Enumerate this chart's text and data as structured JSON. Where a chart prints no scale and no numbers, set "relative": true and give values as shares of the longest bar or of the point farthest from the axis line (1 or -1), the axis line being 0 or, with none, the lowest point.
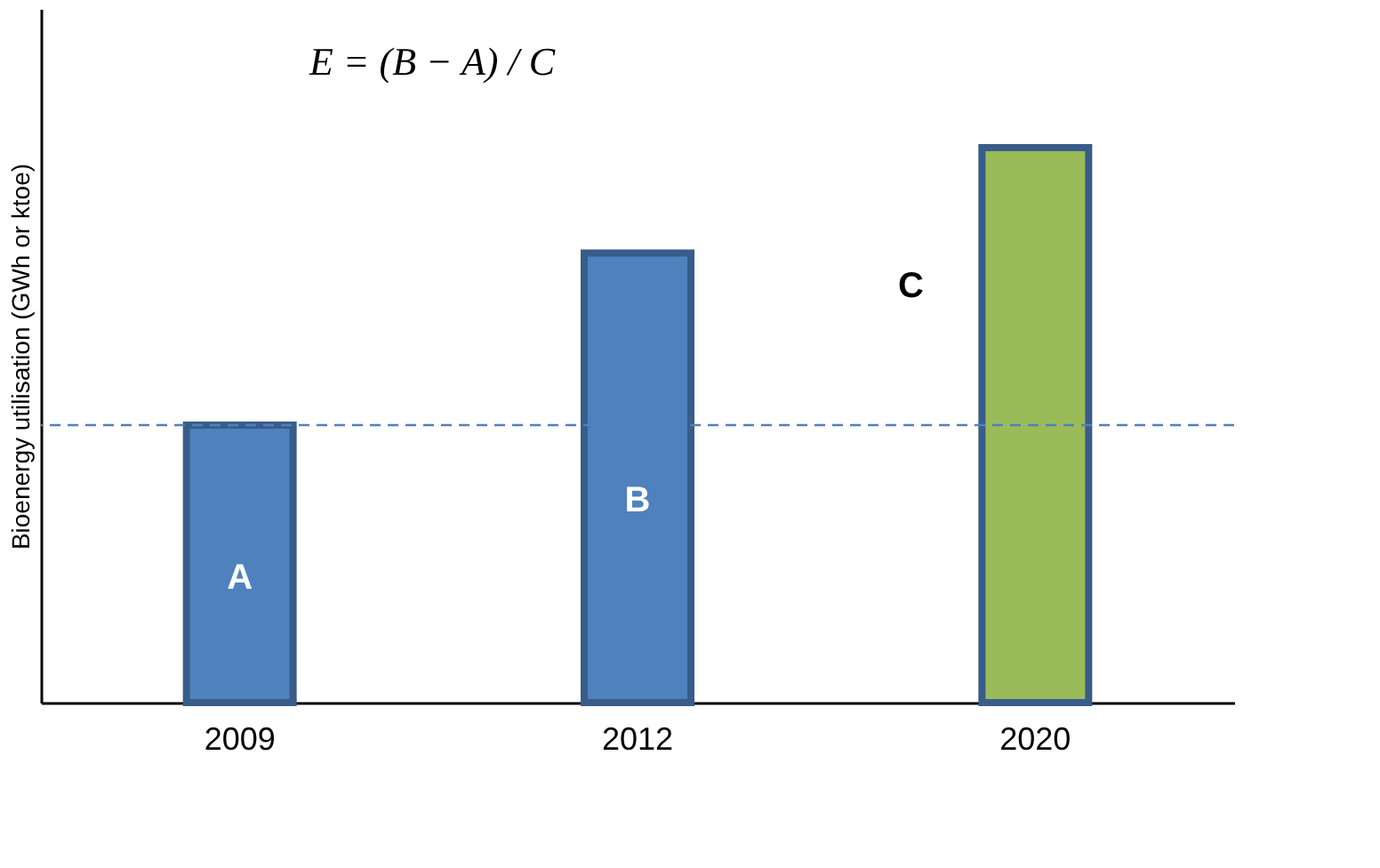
{
  "chart_data": {
    "type": "bar",
    "relative": true,
    "ylabel": "Bioenergy utilisation (GWh or  ktoe)",
    "categories": [
      "2009",
      "2012",
      "2020"
    ],
    "values": [
      0.5,
      0.81,
      1
    ],
    "colors": [
      "#4f81bd",
      "#4f81bd",
      "#9bbb59"
    ],
    "ref_lines": [
      {
        "axis": "y",
        "value": 0.5,
        "color": "#4f81bd",
        "line_style": "dashed"
      }
    ],
    "annotations": [
      "E = (B − A) / C",
      "A",
      "B",
      "C"
    ],
    "grid": false
  }
}
